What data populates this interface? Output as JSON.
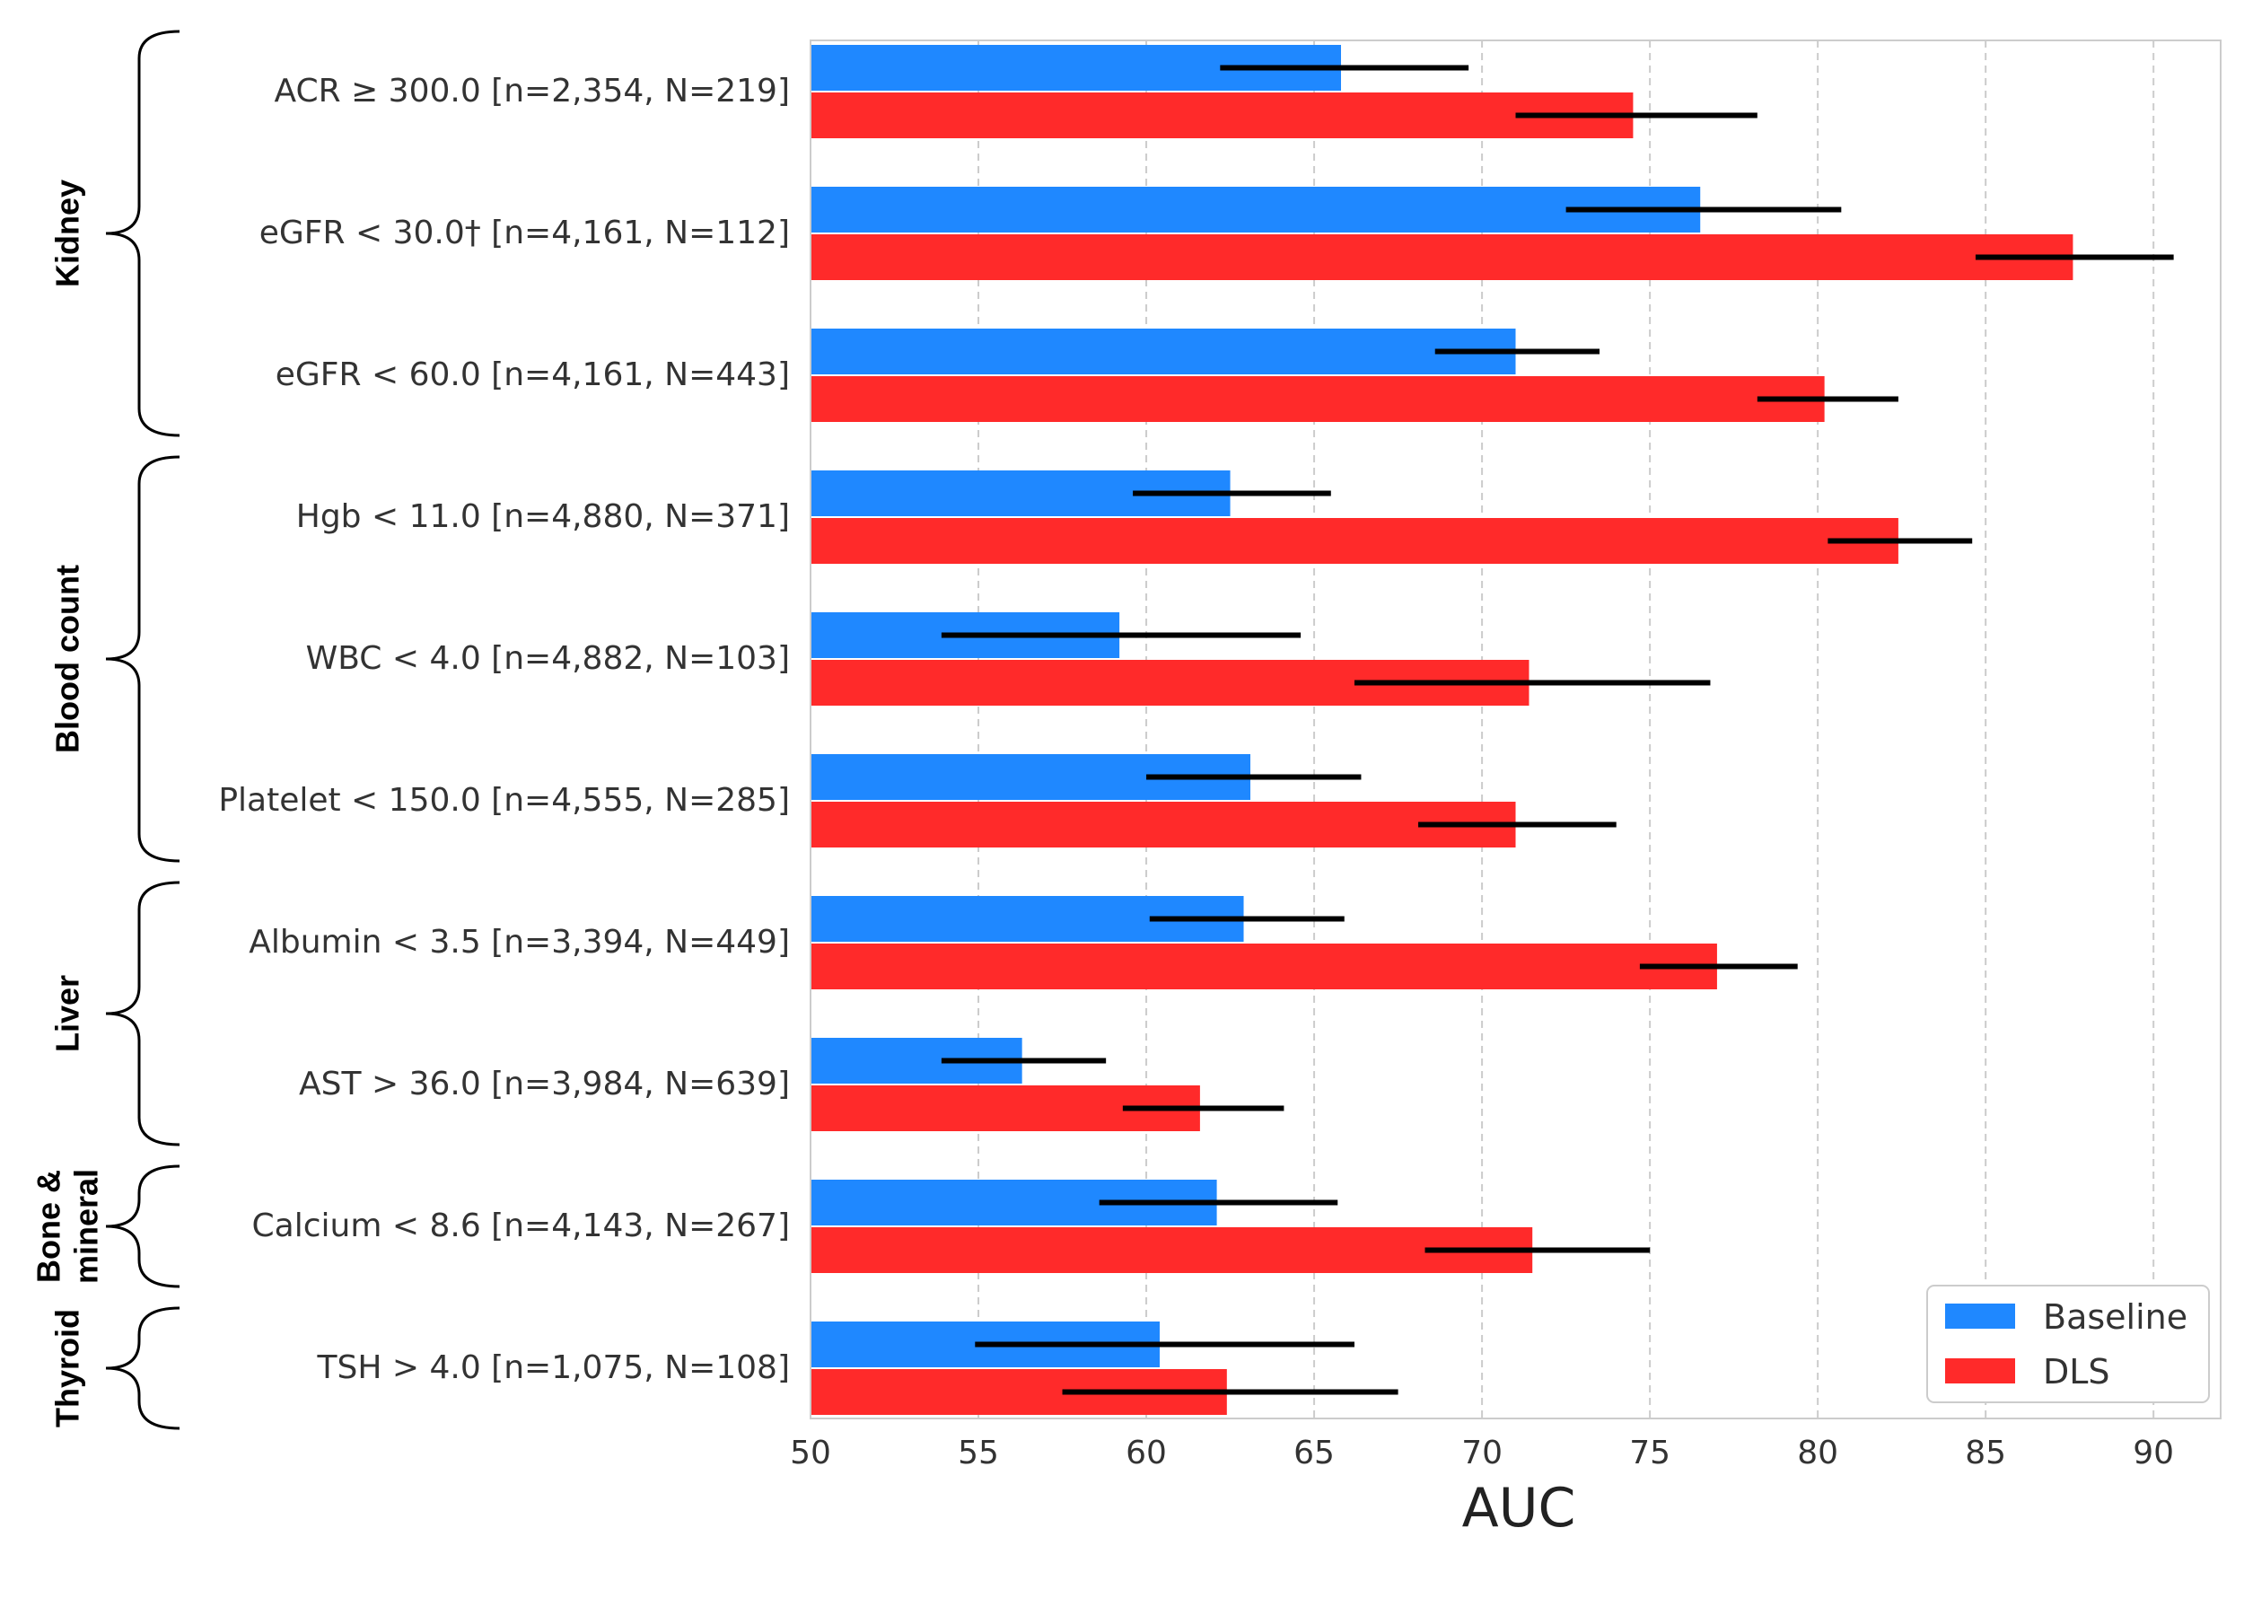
{
  "chart_data": {
    "type": "bar",
    "orientation": "horizontal",
    "xlabel": "AUC",
    "xlim": [
      50,
      92
    ],
    "xticks": [
      50,
      55,
      60,
      65,
      70,
      75,
      80,
      85,
      90
    ],
    "grid": "vertical dashed",
    "legend_position": "bottom-right",
    "categories": [
      "ACR ≥ 300.0 [n=2,354, N=219]",
      "eGFR < 30.0† [n=4,161, N=112]",
      "eGFR < 60.0 [n=4,161, N=443]",
      "Hgb < 11.0 [n=4,880, N=371]",
      "WBC < 4.0 [n=4,882, N=103]",
      "Platelet < 150.0 [n=4,555, N=285]",
      "Albumin < 3.5 [n=3,394, N=449]",
      "AST > 36.0 [n=3,984, N=639]",
      "Calcium < 8.6 [n=4,143, N=267]",
      "TSH > 4.0 [n=1,075, N=108]"
    ],
    "series": [
      {
        "name": "Baseline",
        "color": "#1f88ff",
        "values": [
          65.8,
          76.5,
          71.0,
          62.5,
          59.2,
          63.1,
          62.9,
          56.3,
          62.1,
          60.4
        ],
        "ci_low": [
          62.2,
          72.5,
          68.6,
          59.6,
          53.9,
          60.0,
          60.1,
          53.9,
          58.6,
          54.9
        ],
        "ci_high": [
          69.6,
          80.7,
          73.5,
          65.5,
          64.6,
          66.4,
          65.9,
          58.8,
          65.7,
          66.2
        ]
      },
      {
        "name": "DLS",
        "color": "#ff2a2a",
        "values": [
          74.5,
          87.6,
          80.2,
          82.4,
          71.4,
          71.0,
          77.0,
          61.6,
          71.5,
          62.4
        ],
        "ci_low": [
          71.0,
          84.7,
          78.2,
          80.3,
          66.2,
          68.1,
          74.7,
          59.3,
          68.3,
          57.5
        ],
        "ci_high": [
          78.2,
          90.6,
          82.4,
          84.6,
          76.8,
          74.0,
          79.4,
          64.1,
          75.0,
          67.5
        ]
      }
    ],
    "groups": [
      {
        "label": "Kidney",
        "categories": [
          0,
          1,
          2
        ]
      },
      {
        "label": "Blood count",
        "categories": [
          3,
          4,
          5
        ]
      },
      {
        "label": "Liver",
        "categories": [
          6,
          7
        ]
      },
      {
        "label": "Bone & mineral",
        "categories": [
          8
        ]
      },
      {
        "label": "Thyroid",
        "categories": [
          9
        ]
      }
    ]
  }
}
